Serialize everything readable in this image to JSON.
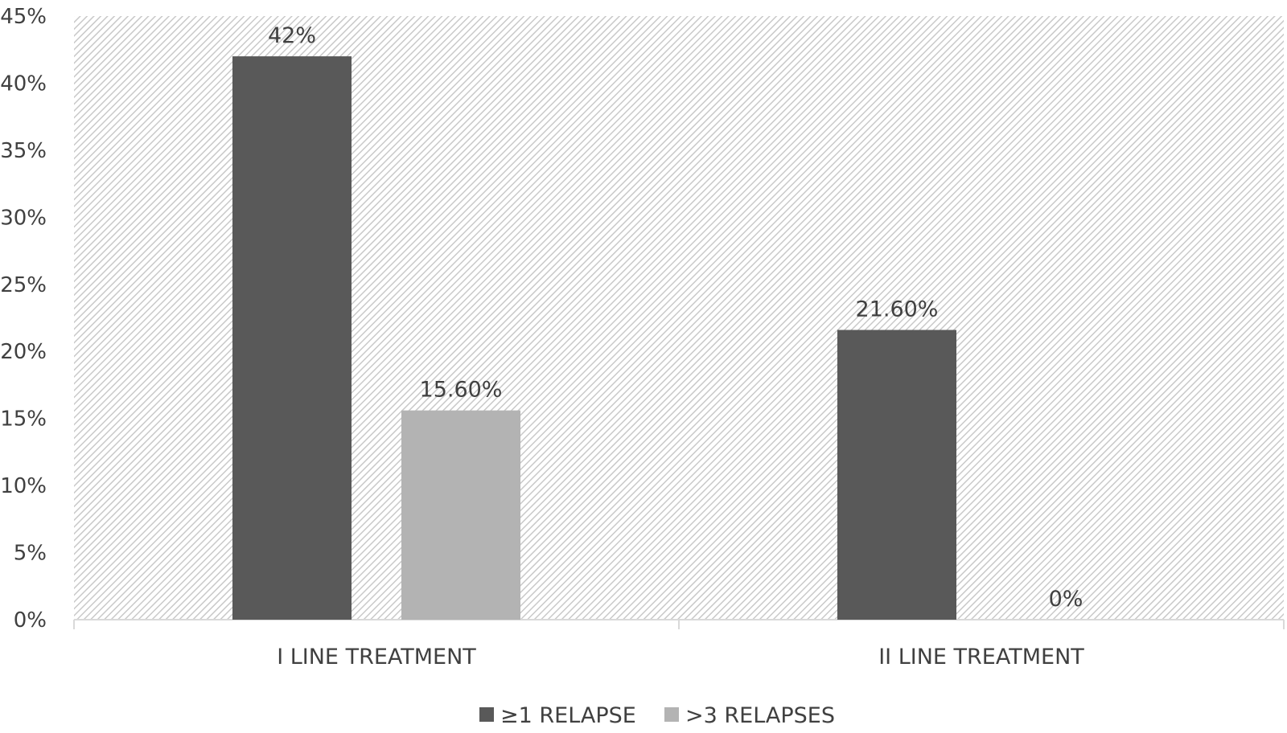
{
  "chart_data": {
    "type": "bar",
    "categories": [
      "I LINE TREATMENT",
      "II LINE TREATMENT"
    ],
    "series": [
      {
        "name": "≥1 RELAPSE",
        "values": [
          42,
          21.6
        ],
        "labels": [
          "42%",
          "21.60%"
        ],
        "color": "#595959"
      },
      {
        "name": ">3 RELAPSES",
        "values": [
          15.6,
          0
        ],
        "labels": [
          "15.60%",
          "0%"
        ],
        "color": "#b3b3b3"
      }
    ],
    "ylim": [
      0,
      45
    ],
    "yticks": [
      0,
      5,
      10,
      15,
      20,
      25,
      30,
      35,
      40,
      45
    ],
    "ytick_labels": [
      "0%",
      "5%",
      "10%",
      "15%",
      "20%",
      "25%",
      "30%",
      "35%",
      "40%",
      "45%"
    ],
    "grid": false,
    "plot_background": "diagonal-hatch",
    "legend_position": "bottom-center"
  }
}
